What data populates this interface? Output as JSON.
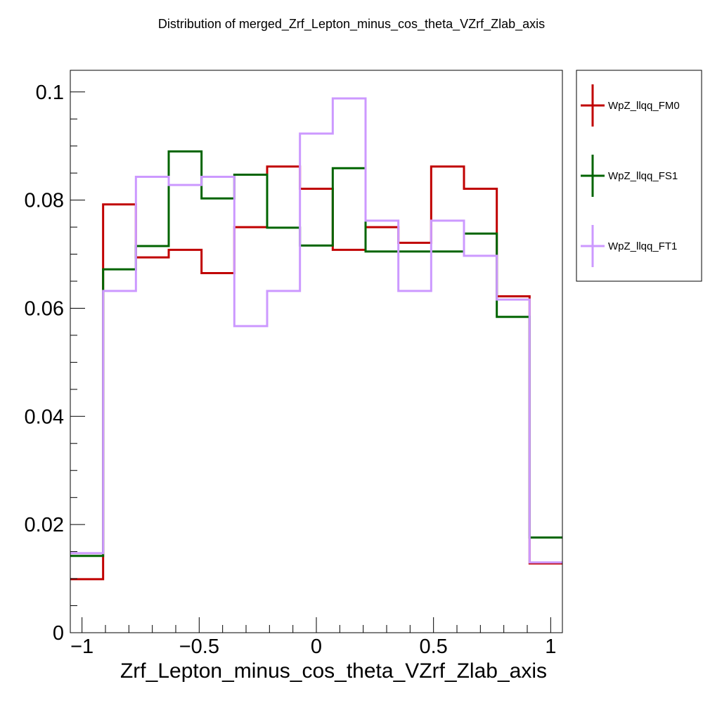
{
  "chart_data": {
    "type": "line",
    "style": "step-histogram",
    "title": "Distribution of merged_Zrf_Lepton_minus_cos_theta_VZrf_Zlab_axis",
    "xlabel": "Zrf_Lepton_minus_cos_theta_VZrf_Zlab_axis",
    "ylabel": "",
    "xlim": [
      -1.05,
      1.05
    ],
    "ylim": [
      0,
      0.104
    ],
    "grid": false,
    "legend_position": "right-top-outside",
    "x_ticks": [
      -1,
      -0.5,
      0,
      0.5,
      1
    ],
    "x_tick_labels": [
      "−1",
      "−0.5",
      "0",
      "0.5",
      "1"
    ],
    "y_ticks": [
      0,
      0.02,
      0.04,
      0.06,
      0.08,
      0.1
    ],
    "y_tick_labels": [
      "0",
      "0.02",
      "0.04",
      "0.06",
      "0.08",
      "0.1"
    ],
    "bin_edges": [
      -1.05,
      -0.91,
      -0.77,
      -0.63,
      -0.49,
      -0.35,
      -0.21,
      -0.07,
      0.07,
      0.21,
      0.35,
      0.49,
      0.63,
      0.77,
      0.91,
      1.05
    ],
    "series": [
      {
        "name": "WpZ_llqq_FM0",
        "color": "#c00000",
        "values": [
          0.0099,
          0.0792,
          0.0694,
          0.0708,
          0.0665,
          0.075,
          0.0862,
          0.0821,
          0.0708,
          0.075,
          0.0721,
          0.0862,
          0.0821,
          0.0622,
          0.0128
        ]
      },
      {
        "name": "WpZ_llqq_FS1",
        "color": "#006400",
        "values": [
          0.0142,
          0.0672,
          0.0715,
          0.089,
          0.0803,
          0.0847,
          0.0749,
          0.0716,
          0.0859,
          0.0705,
          0.0705,
          0.0705,
          0.0738,
          0.0584,
          0.0176
        ]
      },
      {
        "name": "WpZ_llqq_FT1",
        "color": "#cc99ff",
        "values": [
          0.0147,
          0.0632,
          0.0843,
          0.0828,
          0.0843,
          0.0567,
          0.0632,
          0.0923,
          0.0988,
          0.0762,
          0.0632,
          0.0762,
          0.0697,
          0.0616,
          0.013
        ]
      }
    ]
  }
}
